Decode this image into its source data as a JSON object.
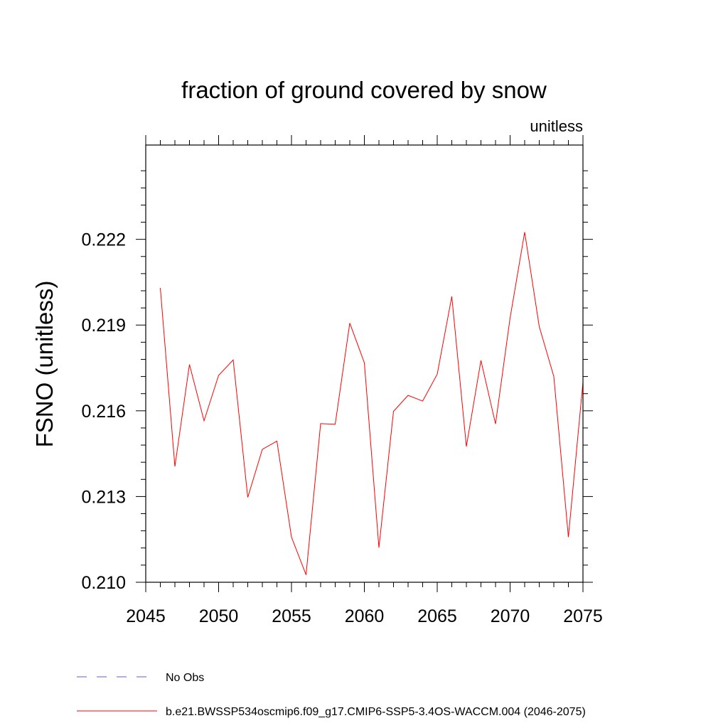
{
  "chart_data": {
    "type": "line",
    "title": "fraction of ground covered by snow",
    "units_label": "unitless",
    "xlabel": "",
    "ylabel": "FSNO  (unitless)",
    "xlim": [
      2045,
      2075
    ],
    "ylim": [
      0.21,
      0.2253
    ],
    "x_ticks": [
      2045,
      2050,
      2055,
      2060,
      2065,
      2070,
      2075
    ],
    "x_tick_labels": [
      "2045",
      "2050",
      "2055",
      "2060",
      "2065",
      "2070",
      "2075"
    ],
    "y_ticks": [
      0.21,
      0.213,
      0.216,
      0.219,
      0.222
    ],
    "y_tick_labels": [
      "0.210",
      "0.213",
      "0.216",
      "0.219",
      "0.222"
    ],
    "series": [
      {
        "name": "b.e21.BWSSP534oscmip6.f09_g17.CMIP6-SSP5-3.4OS-WACCM.004 (2046-2075)",
        "color": "#ff0000",
        "style": "solid",
        "x": [
          2046,
          2047,
          2048,
          2049,
          2050,
          2051,
          2052,
          2053,
          2054,
          2055,
          2056,
          2057,
          2058,
          2059,
          2060,
          2061,
          2062,
          2063,
          2064,
          2065,
          2066,
          2067,
          2068,
          2069,
          2070,
          2071,
          2072,
          2073,
          2074,
          2075
        ],
        "values": [
          0.2203,
          0.21405,
          0.21762,
          0.21565,
          0.21724,
          0.21778,
          0.21297,
          0.21465,
          0.21494,
          0.21158,
          0.21026,
          0.21555,
          0.21553,
          0.21907,
          0.21768,
          0.21121,
          0.21598,
          0.21654,
          0.21634,
          0.21728,
          0.22,
          0.21475,
          0.21776,
          0.21554,
          0.21925,
          0.22225,
          0.21895,
          0.2172,
          0.21158,
          0.217
        ]
      }
    ],
    "legend": [
      {
        "label": "No Obs",
        "color": "#6a5acd",
        "style": "dashed"
      },
      {
        "label": "b.e21.BWSSP534oscmip6.f09_g17.CMIP6-SSP5-3.4OS-WACCM.004 (2046-2075)",
        "color": "#ff0000",
        "style": "solid"
      }
    ],
    "legend_position": "bottom-left",
    "grid": false
  }
}
